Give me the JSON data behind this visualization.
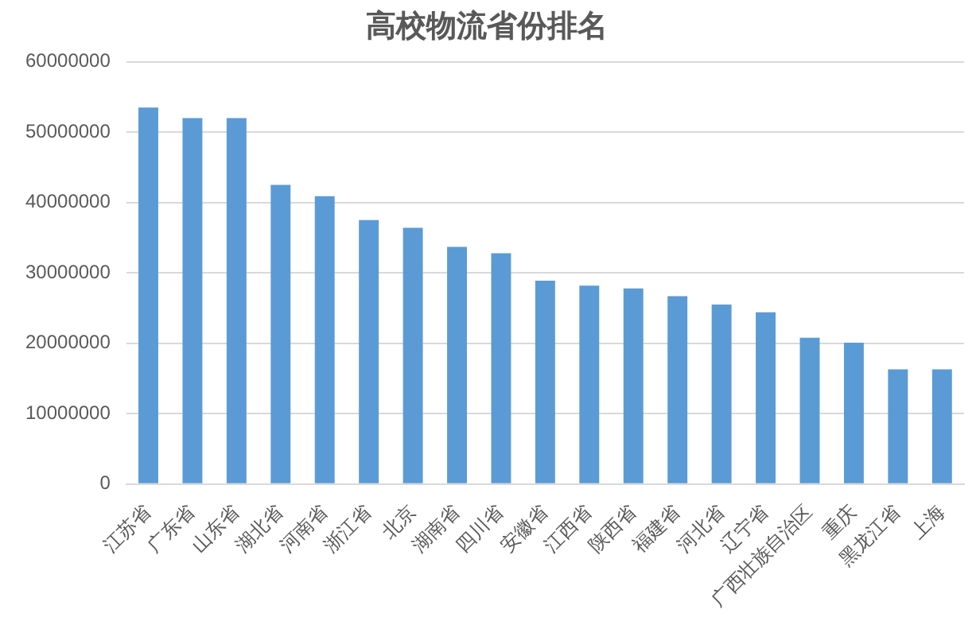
{
  "chart_data": {
    "type": "bar",
    "title": "高校物流省份排名",
    "categories": [
      "江苏省",
      "广东省",
      "山东省",
      "湖北省",
      "河南省",
      "浙江省",
      "北京",
      "湖南省",
      "四川省",
      "安徽省",
      "江西省",
      "陕西省",
      "福建省",
      "河北省",
      "辽宁省",
      "广西壮族自治区",
      "重庆",
      "黑龙江省",
      "上海"
    ],
    "values": [
      53500000,
      52000000,
      52000000,
      42500000,
      40900000,
      37500000,
      36400000,
      33700000,
      32800000,
      28900000,
      28200000,
      27800000,
      26700000,
      25500000,
      24400000,
      20800000,
      20100000,
      16300000,
      16300000
    ],
    "color": "#5b9bd5",
    "ylim": [
      0,
      60000000
    ],
    "yticks": [
      0,
      10000000,
      20000000,
      30000000,
      40000000,
      50000000,
      60000000
    ],
    "grid": "y",
    "legend": false
  }
}
